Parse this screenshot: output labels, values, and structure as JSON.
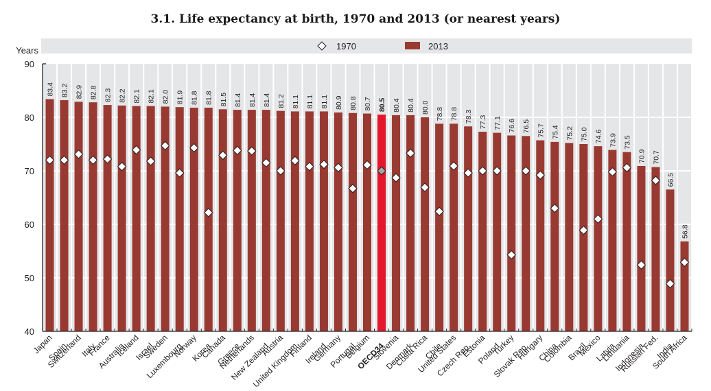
{
  "chart_data": {
    "type": "bar",
    "title": "3.1.  Life expectancy at birth, 1970 and 2013 (or nearest years)",
    "ylabel": "Years",
    "xlabel": "",
    "ylim": [
      40,
      90
    ],
    "yticks": [
      40,
      50,
      60,
      70,
      80,
      90
    ],
    "grid": true,
    "legend_position": "top-center",
    "colors": {
      "bar_2013": "#993a32",
      "bar_highlight": "#e3162b",
      "marker_1970_fill": "#ffffff",
      "marker_highlight_fill": "#a6a6a6",
      "column_bg": "#e5e6e8",
      "legend_bg": "#e5e6e8"
    },
    "highlight_category": "OECD34",
    "categories": [
      "Japan",
      "Spain",
      "Switzerland",
      "Italy",
      "France",
      "Australia",
      "Iceland",
      "Israel",
      "Sweden",
      "Luxembourg",
      "Norway",
      "Korea",
      "Canada",
      "Greece",
      "Netherlands",
      "New Zealand",
      "Austria",
      "United Kingdom",
      "Finland",
      "Ireland",
      "Germany",
      "Portugal",
      "Belgium",
      "OECD34",
      "Slovenia",
      "Denmark",
      "Costa Rica",
      "Chile",
      "United States",
      "Czech Rep.",
      "Estonia",
      "Poland",
      "Turkey",
      "Slovak Rep.",
      "Hungary",
      "China",
      "Colombia",
      "Brazil",
      "Mexico",
      "Latvia",
      "Lithuania",
      "Indonesia",
      "Russian Fed.",
      "India",
      "South Africa"
    ],
    "series": [
      {
        "name": "1970",
        "type": "marker",
        "marker": "diamond",
        "values": [
          72.0,
          72.0,
          73.1,
          72.0,
          72.2,
          70.8,
          73.9,
          71.8,
          74.7,
          69.6,
          74.3,
          62.2,
          72.9,
          73.8,
          73.7,
          71.5,
          70.0,
          71.9,
          70.8,
          71.2,
          70.6,
          66.7,
          71.1,
          70.0,
          68.7,
          73.3,
          66.9,
          62.4,
          70.9,
          69.6,
          70.0,
          70.0,
          54.3,
          70.0,
          69.2,
          63.0,
          null,
          58.9,
          61.0,
          69.8,
          70.6,
          52.4,
          68.2,
          48.9,
          52.9
        ]
      },
      {
        "name": "2013",
        "type": "bar",
        "values": [
          83.4,
          83.2,
          82.9,
          82.8,
          82.3,
          82.2,
          82.1,
          82.1,
          82.0,
          81.9,
          81.8,
          81.8,
          81.5,
          81.4,
          81.4,
          81.4,
          81.2,
          81.1,
          81.1,
          81.1,
          80.9,
          80.8,
          80.7,
          80.5,
          80.4,
          80.4,
          80.0,
          78.8,
          78.8,
          78.3,
          77.3,
          77.1,
          76.6,
          76.5,
          75.7,
          75.4,
          75.2,
          75.0,
          74.6,
          73.9,
          73.5,
          70.9,
          70.7,
          66.5,
          56.8
        ],
        "labels": [
          "83.4",
          "83.2",
          "82.9",
          "82.8",
          "82.3",
          "82.2",
          "82.1",
          "82.1",
          "82.0",
          "81.9",
          "81.8",
          "81.8",
          "81.5",
          "81.4",
          "81.4",
          "81.4",
          "81.2",
          "81.1",
          "81.1",
          "81.1",
          "80.9",
          "80.8",
          "80.7",
          "80.5",
          "80.4",
          "80.4",
          "80.0",
          "78.8",
          "78.8",
          "78.3",
          "77.3",
          "77.1",
          "76.6",
          "76.5",
          "75.7",
          "75.4",
          "75.2",
          "75.0",
          "74.6",
          "73.9",
          "73.5",
          "70.9",
          "70.7",
          "66.5",
          "56.8"
        ]
      }
    ]
  }
}
